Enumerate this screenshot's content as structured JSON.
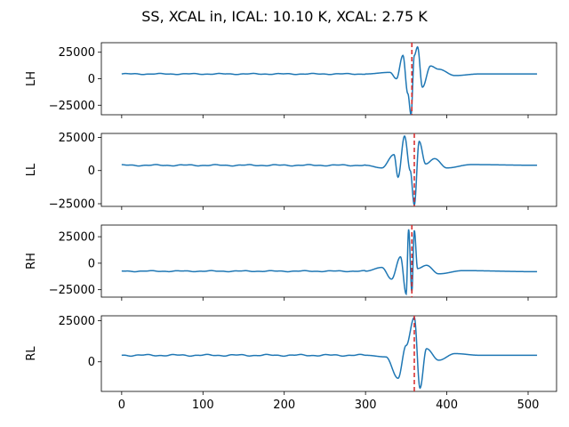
{
  "title": "SS, XCAL in, ICAL: 10.10 K, XCAL: 2.75 K",
  "chart_data": {
    "type": "line",
    "title": "SS, XCAL in, ICAL: 10.10 K, XCAL: 2.75 K",
    "shared_x": true,
    "xlim": [
      -25,
      535
    ],
    "xticks": [
      0,
      100,
      200,
      300,
      400,
      500
    ],
    "xtick_labels": [
      "0",
      "100",
      "200",
      "300",
      "400",
      "500"
    ],
    "line_color": "#1f77b4",
    "marker_color": "#d62728",
    "grid": false,
    "panels": [
      {
        "ylabel": "LH",
        "ylim": [
          -34000,
          34000
        ],
        "yticks": [
          -25000,
          0,
          25000
        ],
        "ytick_labels": [
          "−25000",
          "0",
          "25000"
        ],
        "vline_x": 357,
        "baseline": 4500,
        "features": [
          {
            "x": 300,
            "y": 4500
          },
          {
            "x": 330,
            "y": 6000
          },
          {
            "x": 338,
            "y": 0
          },
          {
            "x": 346,
            "y": 22000
          },
          {
            "x": 352,
            "y": -14000
          },
          {
            "x": 356,
            "y": -34000
          },
          {
            "x": 360,
            "y": 22000
          },
          {
            "x": 364,
            "y": 30000
          },
          {
            "x": 370,
            "y": -8000
          },
          {
            "x": 380,
            "y": 12000
          },
          {
            "x": 390,
            "y": 9000
          },
          {
            "x": 410,
            "y": 3000
          },
          {
            "x": 440,
            "y": 4500
          },
          {
            "x": 511,
            "y": 4500
          }
        ]
      },
      {
        "ylabel": "LL",
        "ylim": [
          -27000,
          28000
        ],
        "yticks": [
          -25000,
          0,
          25000
        ],
        "ytick_labels": [
          "−25000",
          "0",
          "25000"
        ],
        "vline_x": 360,
        "baseline": 4000,
        "features": [
          {
            "x": 300,
            "y": 4000
          },
          {
            "x": 320,
            "y": 2000
          },
          {
            "x": 335,
            "y": 12000
          },
          {
            "x": 340,
            "y": -5000
          },
          {
            "x": 348,
            "y": 26000
          },
          {
            "x": 355,
            "y": 0
          },
          {
            "x": 360,
            "y": -26000
          },
          {
            "x": 366,
            "y": 22000
          },
          {
            "x": 374,
            "y": 5000
          },
          {
            "x": 385,
            "y": 9000
          },
          {
            "x": 400,
            "y": 2000
          },
          {
            "x": 430,
            "y": 4500
          },
          {
            "x": 511,
            "y": 4000
          }
        ]
      },
      {
        "ylabel": "RH",
        "ylim": [
          -32000,
          36000
        ],
        "yticks": [
          -25000,
          0,
          25000
        ],
        "ytick_labels": [
          "−25000",
          "0",
          "25000"
        ],
        "vline_x": 357,
        "baseline": -7500,
        "features": [
          {
            "x": 300,
            "y": -7500
          },
          {
            "x": 320,
            "y": -4000
          },
          {
            "x": 332,
            "y": -15000
          },
          {
            "x": 343,
            "y": 6000
          },
          {
            "x": 350,
            "y": -29000
          },
          {
            "x": 353,
            "y": 32000
          },
          {
            "x": 357,
            "y": -27000
          },
          {
            "x": 360,
            "y": 31000
          },
          {
            "x": 364,
            "y": -5000
          },
          {
            "x": 375,
            "y": -2000
          },
          {
            "x": 390,
            "y": -10000
          },
          {
            "x": 420,
            "y": -7000
          },
          {
            "x": 511,
            "y": -8000
          }
        ]
      },
      {
        "ylabel": "RL",
        "ylim": [
          -18000,
          28000
        ],
        "yticks": [
          0,
          25000
        ],
        "ytick_labels": [
          "0",
          "25000"
        ],
        "vline_x": 360,
        "baseline": 4000,
        "features": [
          {
            "x": 300,
            "y": 4000
          },
          {
            "x": 325,
            "y": 3000
          },
          {
            "x": 340,
            "y": -10000
          },
          {
            "x": 350,
            "y": 10000
          },
          {
            "x": 360,
            "y": 27000
          },
          {
            "x": 367,
            "y": -16000
          },
          {
            "x": 375,
            "y": 8000
          },
          {
            "x": 390,
            "y": 1000
          },
          {
            "x": 410,
            "y": 5000
          },
          {
            "x": 440,
            "y": 4000
          },
          {
            "x": 511,
            "y": 4000
          }
        ]
      }
    ]
  }
}
